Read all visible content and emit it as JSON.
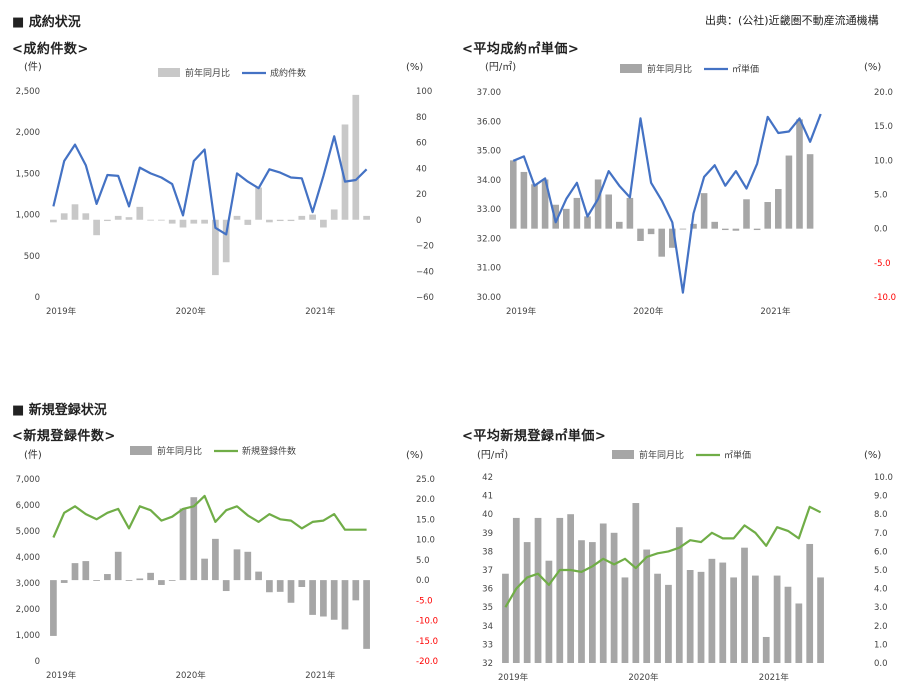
{
  "header": {
    "section1": "■ 成約状況",
    "section2": "■ 新規登録状況",
    "source": "出典：(公社)近畿圏不動産流通機構"
  },
  "colors": {
    "bar": "#bfbfbf",
    "bar_dark": "#a6a6a6",
    "line_blue": "#4472c4",
    "line_green": "#70ad47",
    "negative_red": "#ff0000"
  },
  "chart_data": [
    {
      "type": "bar+line",
      "title": "<成約件数>",
      "left_unit": "(件)",
      "right_unit": "(%)",
      "legend": [
        "前年同月比",
        "成約件数"
      ],
      "x_labels": [
        "2019年",
        "2020年",
        "2021年"
      ],
      "left_ticks": [
        "2,500",
        "2,000",
        "1,500",
        "1,000",
        "500",
        "0"
      ],
      "right_ticks": [
        "100",
        "80",
        "60",
        "40",
        "20",
        "0",
        "−20",
        "−40",
        "−60"
      ],
      "ylim_left": [
        0,
        2500
      ],
      "ylim_right": [
        -60,
        100
      ],
      "line_values": [
        1100,
        1650,
        1850,
        1600,
        1130,
        1480,
        1470,
        1100,
        1570,
        1500,
        1450,
        1370,
        990,
        1650,
        1790,
        840,
        760,
        1500,
        1400,
        1320,
        1550,
        1510,
        1450,
        1440,
        1030,
        1470,
        1950,
        1400,
        1420,
        1550
      ],
      "bar_values": [
        -2,
        5,
        12,
        5,
        -12,
        -1,
        3,
        2,
        10,
        0,
        0,
        -3,
        -6,
        -3,
        -3,
        -43,
        -33,
        3,
        -4,
        25,
        -2,
        -1,
        -1,
        3,
        4,
        -6,
        8,
        74,
        97,
        3
      ],
      "bar_color": "#c8c8c8",
      "line_color": "#4472c4",
      "neg_red": false
    },
    {
      "type": "bar+line",
      "title": "<平均成約㎡単価>",
      "left_unit": "(円/㎡)",
      "right_unit": "(%)",
      "legend": [
        "前年同月比",
        "㎡単価"
      ],
      "x_labels": [
        "2019年",
        "2020年",
        "2021年"
      ],
      "left_ticks": [
        "37.00",
        "36.00",
        "35.00",
        "34.00",
        "33.00",
        "32.00",
        "31.00",
        "30.00"
      ],
      "right_ticks": [
        "20.0",
        "15.0",
        "10.0",
        "5.0",
        "0.0",
        "-5.0",
        "-10.0"
      ],
      "ylim_left": [
        30,
        37
      ],
      "ylim_right": [
        -10,
        20
      ],
      "line_values": [
        34.65,
        34.8,
        33.8,
        34.05,
        32.55,
        33.35,
        33.9,
        32.75,
        33.35,
        34.3,
        33.8,
        33.4,
        36.1,
        33.9,
        33.3,
        32.55,
        30.15,
        32.85,
        34.1,
        34.5,
        33.8,
        34.3,
        33.7,
        34.55,
        36.15,
        35.6,
        35.65,
        36.1,
        35.3,
        36.25
      ],
      "bar_values": [
        10.0,
        8.3,
        6.5,
        7.2,
        3.5,
        2.9,
        4.5,
        1.8,
        7.2,
        5.0,
        1.0,
        4.5,
        -1.8,
        -0.8,
        -4.1,
        -2.8,
        0,
        0.7,
        5.2,
        1.0,
        -0.2,
        -0.3,
        4.3,
        -0.2,
        3.9,
        5.8,
        10.7,
        16.0,
        10.9,
        null
      ],
      "bar_color": "#a6a6a6",
      "line_color": "#4472c4",
      "neg_red": true
    },
    {
      "type": "bar+line",
      "title": "<新規登録件数>",
      "left_unit": "(件)",
      "right_unit": "(%)",
      "legend": [
        "前年同月比",
        "新規登録件数"
      ],
      "x_labels": [
        "2019年",
        "2020年",
        "2021年"
      ],
      "left_ticks": [
        "7,000",
        "6,000",
        "5,000",
        "4,000",
        "3,000",
        "2,000",
        "1,000",
        "0"
      ],
      "right_ticks": [
        "25.0",
        "20.0",
        "15.0",
        "10.0",
        "5.0",
        "0.0",
        "-5.0",
        "-10.0",
        "-15.0",
        "-20.0"
      ],
      "ylim_left": [
        0,
        7000
      ],
      "ylim_right": [
        -20,
        25
      ],
      "line_values": [
        4750,
        5700,
        5950,
        5650,
        5450,
        5700,
        5850,
        5100,
        5950,
        5800,
        5400,
        5550,
        5850,
        5950,
        6350,
        5350,
        5800,
        5950,
        5600,
        5350,
        5650,
        5450,
        5400,
        5100,
        5350,
        5400,
        5650,
        5050,
        5050,
        5050
      ],
      "bar_values": [
        -13.8,
        -0.7,
        4.2,
        4.7,
        -0.2,
        1.5,
        7.0,
        0.0,
        0.4,
        1.8,
        -1.2,
        0.0,
        17.7,
        20.5,
        5.3,
        10.2,
        -2.7,
        7.6,
        7.0,
        2.1,
        -3.0,
        -2.9,
        -5.6,
        -1.7,
        -8.6,
        -9.0,
        -9.8,
        -12.2,
        -5.0,
        -17.0
      ],
      "bar_color": "#a6a6a6",
      "line_color": "#70ad47",
      "neg_red": true
    },
    {
      "type": "bar+line",
      "title": "<平均新規登録㎡単価>",
      "left_unit": "(円/㎡)",
      "right_unit": "(%)",
      "legend": [
        "前年同月比",
        "㎡単価"
      ],
      "x_labels": [
        "2019年",
        "2020年",
        "2021年"
      ],
      "left_ticks": [
        "42",
        "41",
        "40",
        "39",
        "38",
        "37",
        "36",
        "35",
        "34",
        "33",
        "32"
      ],
      "right_ticks": [
        "10.0",
        "9.0",
        "8.0",
        "7.0",
        "6.0",
        "5.0",
        "4.0",
        "3.0",
        "2.0",
        "1.0",
        "0.0"
      ],
      "ylim_left": [
        32,
        42
      ],
      "ylim_right": [
        0,
        10
      ],
      "line_values": [
        35.0,
        36.0,
        36.6,
        36.8,
        36.2,
        37.0,
        37.0,
        36.9,
        37.2,
        37.6,
        37.3,
        37.6,
        37.1,
        37.7,
        37.9,
        38.0,
        38.2,
        38.6,
        38.5,
        39.0,
        38.7,
        38.7,
        39.4,
        39.0,
        38.3,
        39.3,
        39.1,
        38.7,
        40.4,
        40.1
      ],
      "bar_values": [
        4.8,
        7.8,
        6.5,
        7.8,
        5.5,
        7.8,
        8.0,
        6.6,
        6.5,
        7.5,
        7.0,
        4.6,
        8.6,
        6.1,
        4.8,
        4.2,
        7.3,
        5.0,
        4.9,
        5.6,
        5.4,
        4.6,
        6.2,
        4.7,
        1.4,
        4.7,
        4.1,
        3.2,
        6.4,
        4.6
      ],
      "bar_color": "#a6a6a6",
      "line_color": "#70ad47",
      "neg_red": false
    }
  ]
}
